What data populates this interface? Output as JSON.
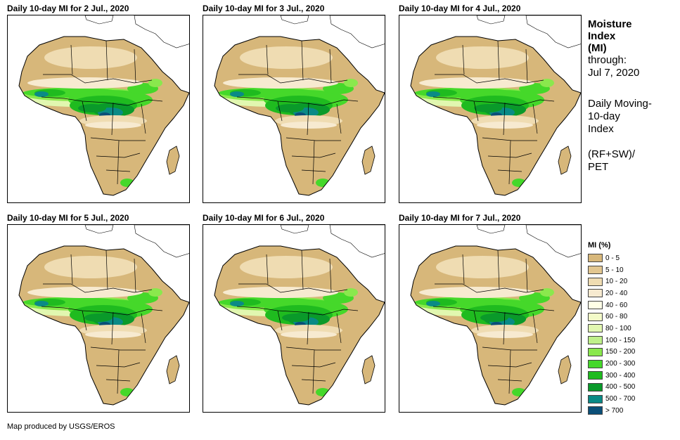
{
  "panels": [
    {
      "title": "Daily 10-day MI for 2 Jul., 2020"
    },
    {
      "title": "Daily 10-day MI for 3 Jul., 2020"
    },
    {
      "title": "Daily 10-day MI for 4 Jul., 2020"
    },
    {
      "title": "Daily 10-day MI for 5 Jul., 2020"
    },
    {
      "title": "Daily 10-day MI for 6 Jul., 2020"
    },
    {
      "title": "Daily 10-day MI for 7 Jul., 2020"
    }
  ],
  "side": {
    "title_line1": "Moisture",
    "title_line2": "Index",
    "title_line3": "(MI)",
    "through_label": "through:",
    "through_date": "Jul 7, 2020",
    "desc_line1": "Daily Moving-",
    "desc_line2": "10-day",
    "desc_line3": "Index",
    "formula_line1": "(RF+SW)/",
    "formula_line2": "PET"
  },
  "legend": {
    "title": "MI (%)",
    "items": [
      {
        "label": "0 - 5",
        "color": "#d7b77a"
      },
      {
        "label": "5 - 10",
        "color": "#e2c690"
      },
      {
        "label": "10 - 20",
        "color": "#efdcb2"
      },
      {
        "label": "20 - 40",
        "color": "#f7ead0"
      },
      {
        "label": "40 - 60",
        "color": "#ffffe6"
      },
      {
        "label": "60 - 80",
        "color": "#f3fbc8"
      },
      {
        "label": "80 - 100",
        "color": "#e1f7b0"
      },
      {
        "label": "100 - 150",
        "color": "#bff08a"
      },
      {
        "label": "150 - 200",
        "color": "#8ae84d"
      },
      {
        "label": "200 - 300",
        "color": "#45d82a"
      },
      {
        "label": "300 - 400",
        "color": "#1fbb1f"
      },
      {
        "label": "400 - 500",
        "color": "#0a9a2a"
      },
      {
        "label": "500 - 700",
        "color": "#0a8a86"
      },
      {
        "label": "> 700",
        "color": "#0b4f78"
      }
    ]
  },
  "credit": "Map produced by USGS/EROS"
}
